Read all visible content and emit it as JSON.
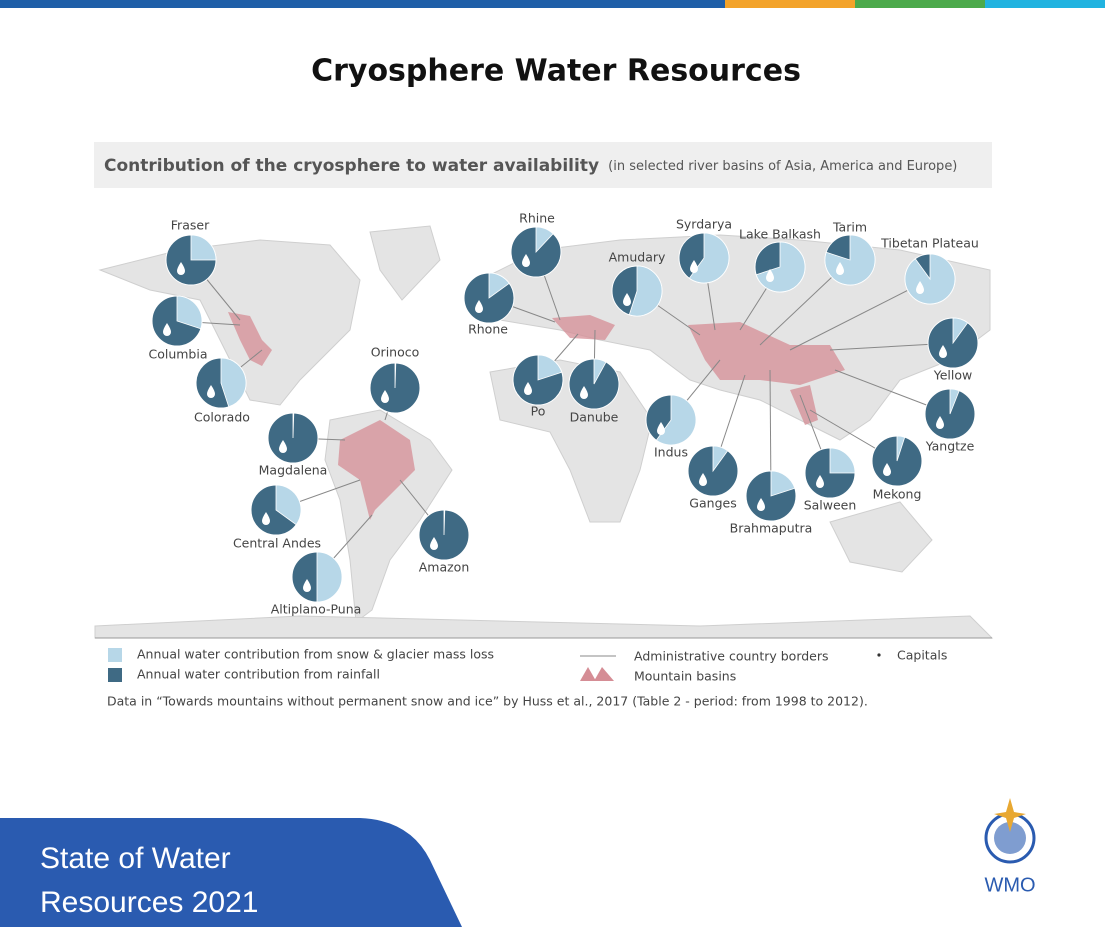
{
  "header": {
    "title": "Cryosphere Water Resources"
  },
  "figure": {
    "heading": "Contribution of the cryosphere to water availability",
    "subheading": "(in selected river basins of Asia, America and Europe)",
    "basins": [
      {
        "name": "Fraser",
        "snow_share": 25
      },
      {
        "name": "Columbia",
        "snow_share": 30
      },
      {
        "name": "Colorado",
        "snow_share": 45
      },
      {
        "name": "Orinoco",
        "snow_share": 0.5
      },
      {
        "name": "Magdalena",
        "snow_share": 0.5
      },
      {
        "name": "Central Andes",
        "snow_share": 35
      },
      {
        "name": "Altiplano-Puna",
        "snow_share": 50
      },
      {
        "name": "Amazon",
        "snow_share": 0.5
      },
      {
        "name": "Rhine",
        "snow_share": 12
      },
      {
        "name": "Rhone",
        "snow_share": 15
      },
      {
        "name": "Po",
        "snow_share": 20
      },
      {
        "name": "Danube",
        "snow_share": 8
      },
      {
        "name": "Amudary",
        "snow_share": 55
      },
      {
        "name": "Syrdarya",
        "snow_share": 60
      },
      {
        "name": "Lake Balkash",
        "snow_share": 70
      },
      {
        "name": "Tarim",
        "snow_share": 80
      },
      {
        "name": "Tibetan Plateau",
        "snow_share": 90
      },
      {
        "name": "Yellow",
        "snow_share": 10
      },
      {
        "name": "Yangtze",
        "snow_share": 6
      },
      {
        "name": "Indus",
        "snow_share": 60
      },
      {
        "name": "Ganges",
        "snow_share": 10
      },
      {
        "name": "Brahmaputra",
        "snow_share": 20
      },
      {
        "name": "Salween",
        "snow_share": 25
      },
      {
        "name": "Mekong",
        "snow_share": 5
      }
    ],
    "legend": {
      "snow": "Annual water contribution from snow & glacier mass loss",
      "rain": "Annual water contribution from rainfall",
      "borders": "Administrative country borders",
      "mountains": "Mountain basins",
      "capitals": "Capitals"
    },
    "source": "Data in “Towards mountains without permanent snow and ice” by Huss et al., 2017 (Table 2 - period: from 1998 to 2012)."
  },
  "footer": {
    "line1": "State of Water",
    "line2": "Resources 2021",
    "logo": "WMO"
  }
}
